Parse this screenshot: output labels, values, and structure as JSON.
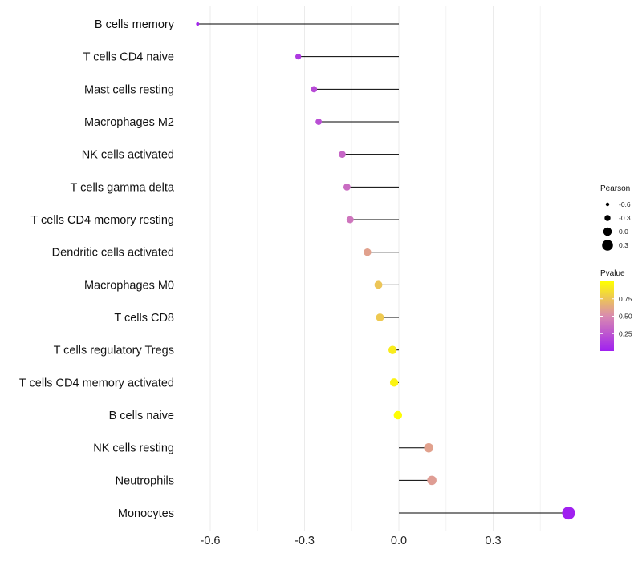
{
  "chart_data": {
    "type": "lollipop",
    "title": "",
    "xlabel": "",
    "ylabel": "",
    "xlim": [
      -0.72,
      0.62
    ],
    "xticks": [
      -0.6,
      -0.3,
      0.0,
      0.3
    ],
    "xtick_labels": [
      "-0.6",
      "-0.3",
      "0.0",
      "0.3"
    ],
    "categories": [
      "B cells memory",
      "T cells CD4 naive",
      "Mast cells resting",
      "Macrophages M2",
      "NK cells activated",
      "T cells gamma delta",
      "T cells CD4 memory resting",
      "Dendritic cells activated",
      "Macrophages M0",
      "T cells CD8",
      "T cells regulatory  Tregs ",
      "T cells CD4 memory activated",
      "B cells naive",
      "NK cells resting",
      "Neutrophils",
      "Monocytes"
    ],
    "pearson": [
      -0.64,
      -0.32,
      -0.27,
      -0.255,
      -0.18,
      -0.165,
      -0.155,
      -0.1,
      -0.065,
      -0.06,
      -0.02,
      -0.015,
      -0.003,
      0.095,
      0.105,
      0.54
    ],
    "pvalue": [
      0.03,
      0.12,
      0.2,
      0.22,
      0.33,
      0.36,
      0.4,
      0.6,
      0.75,
      0.77,
      0.92,
      0.95,
      0.99,
      0.6,
      0.58,
      0.001
    ],
    "legend": {
      "size_title": "Pearson",
      "size_values": [
        -0.6,
        -0.3,
        0.0,
        0.3
      ],
      "size_labels": [
        "-0.6",
        "-0.3",
        "0.0",
        "0.3"
      ],
      "color_title": "Pvalue",
      "color_labels": [
        "0.75",
        "0.50",
        "0.25"
      ],
      "color_values": [
        0.75,
        0.5,
        0.25
      ],
      "color_low": "#a020f0",
      "color_mid": "#d98ab0",
      "color_high": "#ffff00",
      "placement": "right"
    }
  }
}
